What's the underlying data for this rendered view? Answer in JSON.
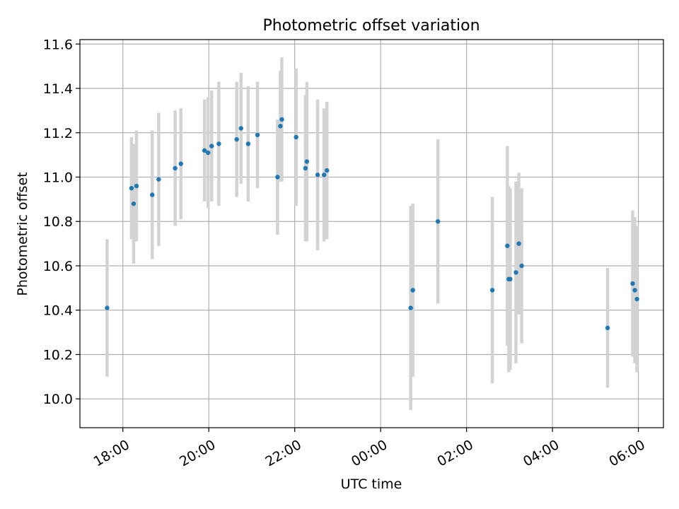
{
  "chart_data": {
    "type": "scatter",
    "title": "Photometric offset variation",
    "xlabel": "UTC time",
    "ylabel": "Photometric offset",
    "x_unit": "UTC time of day (hours, continuing past midnight)",
    "xlim": [
      "17:00",
      "06:35"
    ],
    "ylim": [
      9.87,
      11.62
    ],
    "x_ticks": [
      {
        "label": "18:00",
        "value": 18
      },
      {
        "label": "20:00",
        "value": 20
      },
      {
        "label": "22:00",
        "value": 22
      },
      {
        "label": "00:00",
        "value": 24
      },
      {
        "label": "02:00",
        "value": 26
      },
      {
        "label": "04:00",
        "value": 28
      },
      {
        "label": "06:00",
        "value": 30
      }
    ],
    "y_ticks": [
      "10.0",
      "10.2",
      "10.4",
      "10.6",
      "10.8",
      "11.0",
      "11.2",
      "11.4",
      "11.6"
    ],
    "grid": true,
    "point_color": "#1f77b4",
    "errorbar_color": "#d3d3d3",
    "points": [
      {
        "x": "17:38",
        "y": 10.41,
        "err": 0.31
      },
      {
        "x": "18:12",
        "y": 10.95,
        "err": 0.23
      },
      {
        "x": "18:15",
        "y": 10.88,
        "err": 0.27
      },
      {
        "x": "18:19",
        "y": 10.96,
        "err": 0.25
      },
      {
        "x": "18:41",
        "y": 10.92,
        "err": 0.29
      },
      {
        "x": "18:50",
        "y": 10.99,
        "err": 0.3
      },
      {
        "x": "19:13",
        "y": 11.04,
        "err": 0.26
      },
      {
        "x": "19:21",
        "y": 11.06,
        "err": 0.25
      },
      {
        "x": "19:54",
        "y": 11.12,
        "err": 0.23
      },
      {
        "x": "19:59",
        "y": 11.11,
        "err": 0.25
      },
      {
        "x": "20:04",
        "y": 11.14,
        "err": 0.25
      },
      {
        "x": "20:14",
        "y": 11.15,
        "err": 0.28
      },
      {
        "x": "20:39",
        "y": 11.17,
        "err": 0.26
      },
      {
        "x": "20:45",
        "y": 11.22,
        "err": 0.25
      },
      {
        "x": "20:55",
        "y": 11.15,
        "err": 0.26
      },
      {
        "x": "21:08",
        "y": 11.19,
        "err": 0.24
      },
      {
        "x": "21:36",
        "y": 11.0,
        "err": 0.26
      },
      {
        "x": "21:40",
        "y": 11.23,
        "err": 0.25
      },
      {
        "x": "21:42",
        "y": 11.26,
        "err": 0.28
      },
      {
        "x": "22:02",
        "y": 11.18,
        "err": 0.31
      },
      {
        "x": "22:15",
        "y": 11.04,
        "err": 0.33
      },
      {
        "x": "22:17",
        "y": 11.07,
        "err": 0.36
      },
      {
        "x": "22:32",
        "y": 11.01,
        "err": 0.34
      },
      {
        "x": "22:41",
        "y": 11.01,
        "err": 0.3
      },
      {
        "x": "22:45",
        "y": 11.03,
        "err": 0.31
      },
      {
        "x": "00:42",
        "y": 10.41,
        "err": 0.46
      },
      {
        "x": "00:45",
        "y": 10.49,
        "err": 0.39
      },
      {
        "x": "01:20",
        "y": 10.8,
        "err": 0.37
      },
      {
        "x": "02:36",
        "y": 10.49,
        "err": 0.42
      },
      {
        "x": "02:57",
        "y": 10.69,
        "err": 0.45
      },
      {
        "x": "02:59",
        "y": 10.54,
        "err": 0.42
      },
      {
        "x": "03:01",
        "y": 10.54,
        "err": 0.41
      },
      {
        "x": "03:09",
        "y": 10.57,
        "err": 0.41
      },
      {
        "x": "03:13",
        "y": 10.7,
        "err": 0.32
      },
      {
        "x": "03:17",
        "y": 10.6,
        "err": 0.35
      },
      {
        "x": "05:17",
        "y": 10.32,
        "err": 0.27
      },
      {
        "x": "05:52",
        "y": 10.52,
        "err": 0.33
      },
      {
        "x": "05:55",
        "y": 10.49,
        "err": 0.33
      },
      {
        "x": "05:58",
        "y": 10.45,
        "err": 0.33
      }
    ]
  }
}
